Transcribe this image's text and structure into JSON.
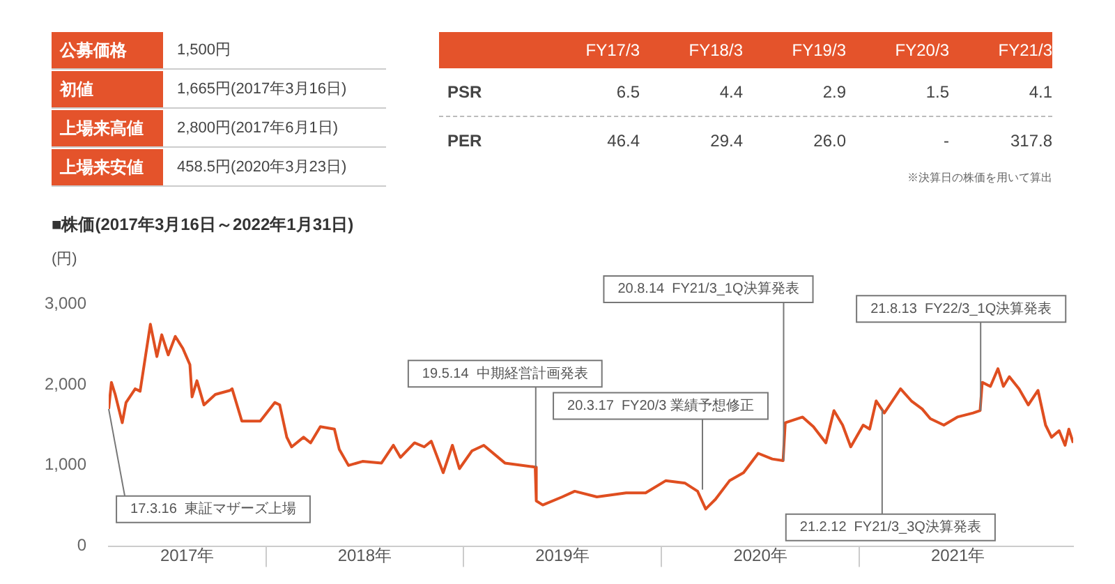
{
  "chart_data": [
    {
      "type": "other",
      "categories": [
        "公募価格",
        "初値",
        "上場来高値",
        "上場来安値"
      ],
      "value_labels": [
        "1,500円",
        "1,665円(2017年3月16日)",
        "2,800円(2017年6月1日)",
        "458.5円(2020年3月23日)"
      ]
    },
    {
      "type": "other",
      "categories": [
        "FY17/3",
        "FY18/3",
        "FY19/3",
        "FY20/3",
        "FY21/3"
      ],
      "data_labels": true,
      "series": [
        {
          "name": "PSR",
          "values": [
            6.5,
            4.4,
            2.9,
            1.5,
            4.1
          ]
        },
        {
          "name": "PER",
          "values": [
            46.4,
            29.4,
            26.0,
            null,
            317.8
          ],
          "value_labels": [
            "46.4",
            "29.4",
            "26.0",
            "-",
            "317.8"
          ]
        }
      ],
      "annotations": [
        "※決算日の株価を用いて算出"
      ]
    },
    {
      "type": "line",
      "title": "■株価(2017年3月16日～2022年1月31日)",
      "ylabel": "(円)",
      "color": "#df4e20",
      "marker": "none",
      "x": [
        "2017-03-16",
        "2017-03-21",
        "2017-03-28",
        "2017-04-10",
        "2017-04-17",
        "2017-05-04",
        "2017-05-13",
        "2017-06-01",
        "2017-06-13",
        "2017-06-22",
        "2017-07-04",
        "2017-07-17",
        "2017-07-31",
        "2017-08-13",
        "2017-08-17",
        "2017-08-26",
        "2017-09-08",
        "2017-09-29",
        "2017-10-26",
        "2017-10-30",
        "2017-11-17",
        "2017-12-21",
        "2018-01-17",
        "2018-01-26",
        "2018-02-08",
        "2018-02-17",
        "2018-03-11",
        "2018-03-24",
        "2018-04-11",
        "2018-05-07",
        "2018-05-16",
        "2018-06-02",
        "2018-06-28",
        "2018-08-02",
        "2018-08-24",
        "2018-09-06",
        "2018-10-02",
        "2018-10-20",
        "2018-11-02",
        "2018-11-24",
        "2018-12-11",
        "2018-12-24",
        "2019-01-16",
        "2019-02-07",
        "2019-03-18",
        "2019-05-13",
        "2019-05-15",
        "2019-05-27",
        "2019-07-02",
        "2019-07-25",
        "2019-09-04",
        "2019-10-28",
        "2019-12-03",
        "2020-01-09",
        "2020-02-14",
        "2020-03-08",
        "2020-03-23",
        "2020-04-10",
        "2020-05-06",
        "2020-06-01",
        "2020-06-28",
        "2020-07-24",
        "2020-08-13",
        "2020-08-17",
        "2020-09-18",
        "2020-10-08",
        "2020-10-31",
        "2020-11-15",
        "2020-12-01",
        "2020-12-16",
        "2021-01-08",
        "2021-01-20",
        "2021-02-01",
        "2021-02-16",
        "2021-03-18",
        "2021-04-07",
        "2021-04-27",
        "2021-05-12",
        "2021-06-06",
        "2021-07-01",
        "2021-07-30",
        "2021-08-12",
        "2021-08-16",
        "2021-08-31",
        "2021-09-14",
        "2021-09-24",
        "2021-10-05",
        "2021-10-23",
        "2021-11-09",
        "2021-11-27",
        "2021-12-11",
        "2021-12-22",
        "2022-01-05",
        "2022-01-16",
        "2022-01-23",
        "2022-01-31"
      ],
      "values": [
        1700,
        2030,
        1880,
        1530,
        1780,
        1950,
        1920,
        2750,
        2350,
        2620,
        2370,
        2600,
        2450,
        2250,
        1850,
        2050,
        1750,
        1880,
        1930,
        1950,
        1550,
        1550,
        1780,
        1750,
        1350,
        1230,
        1350,
        1280,
        1480,
        1450,
        1200,
        1000,
        1050,
        1030,
        1250,
        1100,
        1280,
        1230,
        1300,
        910,
        1250,
        960,
        1180,
        1250,
        1030,
        980,
        560,
        510,
        610,
        680,
        610,
        660,
        660,
        810,
        780,
        680,
        460,
        580,
        810,
        910,
        1150,
        1080,
        1060,
        1530,
        1600,
        1480,
        1280,
        1680,
        1500,
        1230,
        1500,
        1450,
        1800,
        1650,
        1950,
        1800,
        1700,
        1580,
        1500,
        1600,
        1650,
        1680,
        2030,
        1980,
        2200,
        1980,
        2100,
        1950,
        1750,
        1930,
        1500,
        1350,
        1430,
        1250,
        1450,
        1280
      ],
      "xlim": [
        "2017-03-16",
        "2022-01-31"
      ],
      "xticks": [
        {
          "value": "2017-08-08",
          "label": "2017年"
        },
        {
          "value": "2018-01-01",
          "label": null
        },
        {
          "value": "2018-07-02",
          "label": "2018年"
        },
        {
          "value": "2019-01-01",
          "label": null
        },
        {
          "value": "2019-07-02",
          "label": "2019年"
        },
        {
          "value": "2020-01-01",
          "label": null
        },
        {
          "value": "2020-07-02",
          "label": "2020年"
        },
        {
          "value": "2021-01-01",
          "label": null
        },
        {
          "value": "2021-07-02",
          "label": "2021年"
        }
      ],
      "ylim": [
        0,
        3000
      ],
      "yticks": [
        0,
        {
          "value": 1000,
          "label": "1,000"
        },
        {
          "value": 2000,
          "label": "2,000"
        },
        {
          "value": 3000,
          "label": "3,000"
        }
      ],
      "annotations": [
        {
          "text": "17.3.16  東証マザーズ上場",
          "x": "2017-03-16",
          "y": 1700
        },
        {
          "text": "19.5.14  中期経営計画発表",
          "x": "2019-05-14",
          "y": 980
        },
        {
          "text": "20.3.17  FY20/3 業績予想修正",
          "x": "2020-03-17",
          "y": 700
        },
        {
          "text": "20.8.14  FY21/3_1Q決算発表",
          "x": "2020-08-14",
          "y": 1060
        },
        {
          "text": "21.8.13  FY22/3_1Q決算発表",
          "x": "2021-08-13",
          "y": 1680
        },
        {
          "text": "21.2.12  FY21/3_3Q決算発表",
          "x": "2021-02-12",
          "y": 1700
        }
      ]
    }
  ]
}
